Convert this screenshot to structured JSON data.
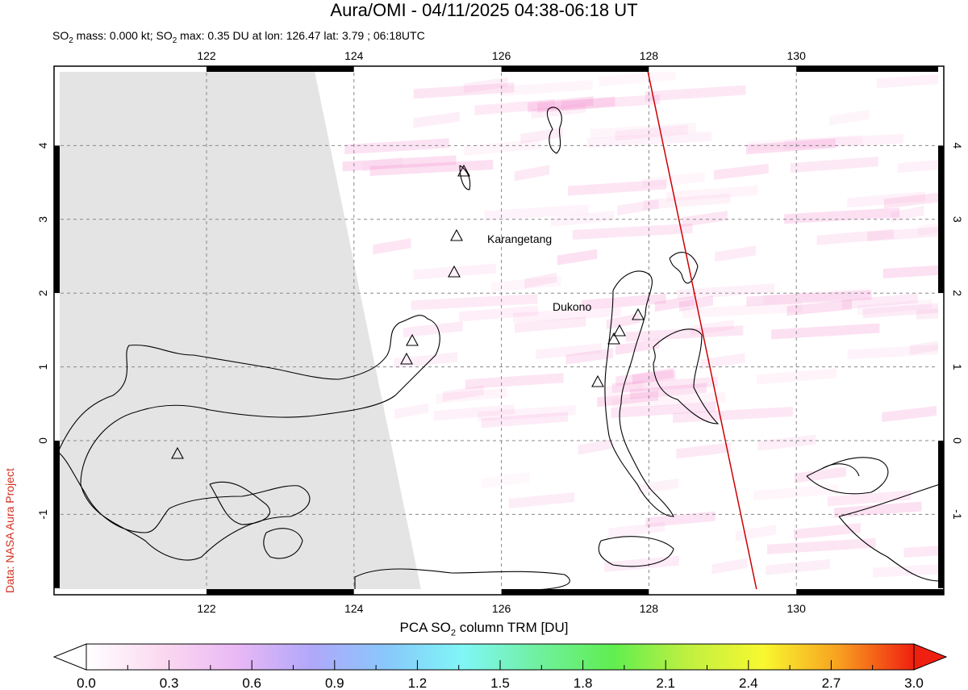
{
  "title": "Aura/OMI - 04/11/2025 04:38-06:18 UT",
  "subtitle": {
    "so2_mass": "0.000 kt",
    "so2_max": "0.35 DU",
    "lon": "126.47",
    "lat": "3.79",
    "time": "06:18UTC",
    "parts": [
      "SO",
      "2",
      " mass: 0.000 kt; SO",
      "2",
      " max: 0.35 DU at lon: 126.47 lat: 3.79 ; 06:18UTC"
    ]
  },
  "credit": "Data: NASA Aura Project",
  "map": {
    "lon_range": [
      120,
      132
    ],
    "lat_range": [
      -2,
      5
    ],
    "lon_ticks": [
      "122",
      "124",
      "126",
      "128",
      "130"
    ],
    "lat_ticks": [
      "4",
      "3",
      "2",
      "1",
      "0",
      "-1"
    ],
    "volcanoes": [
      {
        "name": "Karangetang"
      },
      {
        "name": "Dukono"
      }
    ],
    "orbit_line_color": "#cc0000",
    "no_data_color": "#e4e4e4"
  },
  "colorbar": {
    "title_parts": [
      "PCA SO",
      "2",
      " column TRM [DU]"
    ],
    "ticks": [
      "0.0",
      "0.3",
      "0.6",
      "0.9",
      "1.2",
      "1.5",
      "1.8",
      "2.1",
      "2.4",
      "2.7",
      "3.0"
    ],
    "range": [
      0.0,
      3.0
    ],
    "colors": [
      "#ffffff",
      "#fbd9f0",
      "#eab8f5",
      "#b0a8fa",
      "#88c8fb",
      "#80f6f6",
      "#70f0a0",
      "#60ee50",
      "#c0f040",
      "#f8f830",
      "#f8a020",
      "#f02010"
    ]
  }
}
